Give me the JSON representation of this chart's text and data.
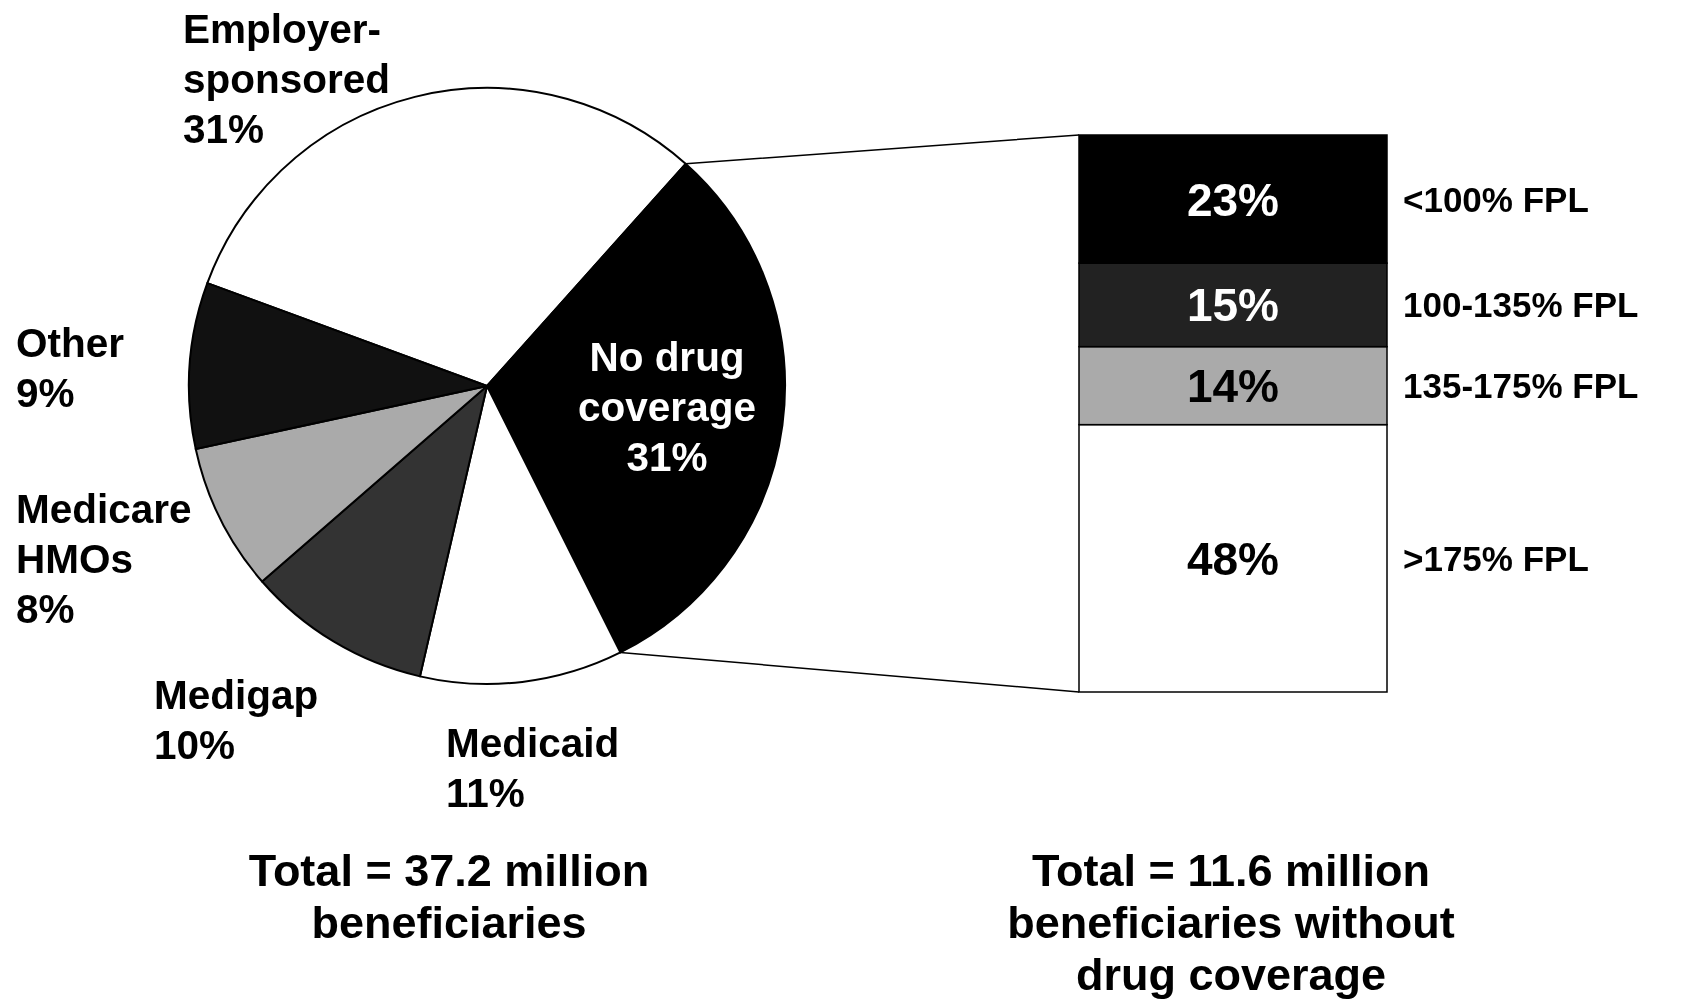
{
  "chart_data": [
    {
      "type": "pie",
      "categories": [
        "Employer-sponsored",
        "No drug coverage",
        "Medicaid",
        "Medigap",
        "Medicare HMOs",
        "Other"
      ],
      "values": [
        31,
        31,
        11,
        10,
        8,
        9
      ],
      "colors": [
        "#ffffff",
        "#000000",
        "#ffffff",
        "#333333",
        "#aaaaaa",
        "#111111"
      ],
      "value_labels": [
        "31%",
        "31%",
        "11%",
        "10%",
        "8%",
        "9%"
      ],
      "annotations": [
        "Total = 37.2 million beneficiaries"
      ]
    },
    {
      "type": "bar",
      "stacked": true,
      "categories": [
        null
      ],
      "series": [
        {
          "name": ">175% FPL",
          "color": "#ffffff",
          "values": [
            48
          ],
          "value_labels": [
            "48%"
          ]
        },
        {
          "name": "135-175% FPL",
          "color": "#aaaaaa",
          "values": [
            14
          ],
          "value_labels": [
            "14%"
          ]
        },
        {
          "name": "100-135% FPL",
          "color": "#222222",
          "values": [
            15
          ],
          "value_labels": [
            "15%"
          ]
        },
        {
          "name": "<100% FPL",
          "color": "#000000",
          "values": [
            23
          ],
          "value_labels": [
            "23%"
          ]
        }
      ],
      "annotations": [
        "Total = 11.6 million beneficiaries without drug coverage"
      ]
    }
  ]
}
